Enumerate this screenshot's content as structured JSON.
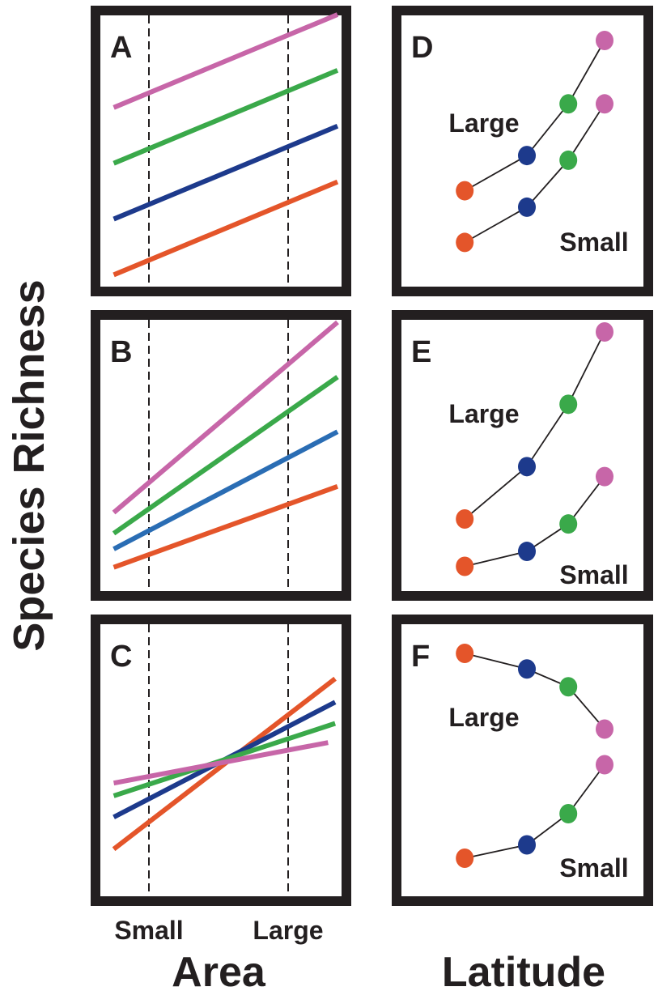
{
  "colors": {
    "pink": "#c766a8",
    "green": "#3aa94a",
    "navy": "#1d3a8c",
    "blue": "#2a6db4",
    "orange": "#e4552a",
    "ink": "#231f20"
  },
  "figure": {
    "y_axis_label": "Species Richness",
    "x_axis_label_left": "Area",
    "x_axis_label_right": "Latitude",
    "area_tick_small": "Small",
    "area_tick_large": "Large"
  },
  "chart_data": [
    {
      "panel": "A",
      "type": "line",
      "x_axis": "Area",
      "y_axis": "Species Richness",
      "xlim": [
        0,
        1
      ],
      "ylim": [
        0,
        1
      ],
      "x_reference_lines": [
        0.17,
        0.81
      ],
      "series": [
        {
          "color": "#c766a8",
          "x": [
            0.05,
            1.0
          ],
          "y": [
            0.65,
            1.0
          ]
        },
        {
          "color": "#3aa94a",
          "x": [
            0.05,
            1.0
          ],
          "y": [
            0.44,
            0.79
          ]
        },
        {
          "color": "#1d3a8c",
          "x": [
            0.05,
            1.0
          ],
          "y": [
            0.23,
            0.58
          ]
        },
        {
          "color": "#e4552a",
          "x": [
            0.05,
            1.0
          ],
          "y": [
            0.02,
            0.37
          ]
        }
      ]
    },
    {
      "panel": "B",
      "type": "line",
      "x_axis": "Area",
      "y_axis": "Species Richness",
      "xlim": [
        0,
        1
      ],
      "ylim": [
        0,
        1
      ],
      "x_reference_lines": [
        0.17,
        0.81
      ],
      "series": [
        {
          "color": "#c766a8",
          "x": [
            0.05,
            1.0
          ],
          "y": [
            0.27,
            1.0
          ]
        },
        {
          "color": "#3aa94a",
          "x": [
            0.05,
            1.0
          ],
          "y": [
            0.19,
            0.79
          ]
        },
        {
          "color": "#2a6db4",
          "x": [
            0.05,
            1.0
          ],
          "y": [
            0.13,
            0.58
          ]
        },
        {
          "color": "#e4552a",
          "x": [
            0.05,
            1.0
          ],
          "y": [
            0.06,
            0.37
          ]
        }
      ]
    },
    {
      "panel": "C",
      "type": "line",
      "x_axis": "Area",
      "y_axis": "Species Richness",
      "xlim": [
        0,
        1
      ],
      "ylim": [
        0,
        1
      ],
      "x_reference_lines": [
        0.17,
        0.81
      ],
      "series": [
        {
          "color": "#e4552a",
          "x": [
            0.05,
            0.99
          ],
          "y": [
            0.1,
            0.9
          ]
        },
        {
          "color": "#1d3a8c",
          "x": [
            0.05,
            0.99
          ],
          "y": [
            0.25,
            0.79
          ]
        },
        {
          "color": "#3aa94a",
          "x": [
            0.05,
            0.99
          ],
          "y": [
            0.35,
            0.69
          ]
        },
        {
          "color": "#c766a8",
          "x": [
            0.05,
            0.96
          ],
          "y": [
            0.41,
            0.6
          ]
        }
      ]
    },
    {
      "panel": "D",
      "type": "scatter",
      "x_axis": "Latitude",
      "y_axis": "Species Richness",
      "xlim": [
        0,
        1
      ],
      "ylim": [
        0,
        1
      ],
      "groups": [
        {
          "label": "Large",
          "label_pos": "left",
          "points": [
            {
              "x": 0.26,
              "y": 0.36,
              "color": "#e4552a"
            },
            {
              "x": 0.5,
              "y": 0.51,
              "color": "#1d3a8c"
            },
            {
              "x": 0.66,
              "y": 0.73,
              "color": "#3aa94a"
            },
            {
              "x": 0.8,
              "y": 1.0,
              "color": "#c766a8"
            }
          ]
        },
        {
          "label": "Small",
          "label_pos": "right",
          "points": [
            {
              "x": 0.26,
              "y": 0.14,
              "color": "#e4552a"
            },
            {
              "x": 0.5,
              "y": 0.29,
              "color": "#1d3a8c"
            },
            {
              "x": 0.66,
              "y": 0.49,
              "color": "#3aa94a"
            },
            {
              "x": 0.8,
              "y": 0.73,
              "color": "#c766a8"
            }
          ]
        }
      ]
    },
    {
      "panel": "E",
      "type": "scatter",
      "x_axis": "Latitude",
      "y_axis": "Species Richness",
      "xlim": [
        0,
        1
      ],
      "ylim": [
        0,
        1
      ],
      "groups": [
        {
          "label": "Large",
          "label_pos": "left",
          "points": [
            {
              "x": 0.26,
              "y": 0.25,
              "color": "#e4552a"
            },
            {
              "x": 0.5,
              "y": 0.46,
              "color": "#1d3a8c"
            },
            {
              "x": 0.66,
              "y": 0.71,
              "color": "#3aa94a"
            },
            {
              "x": 0.8,
              "y": 1.0,
              "color": "#c766a8"
            }
          ]
        },
        {
          "label": "Small",
          "label_pos": "right",
          "points": [
            {
              "x": 0.26,
              "y": 0.06,
              "color": "#e4552a"
            },
            {
              "x": 0.5,
              "y": 0.12,
              "color": "#1d3a8c"
            },
            {
              "x": 0.66,
              "y": 0.23,
              "color": "#3aa94a"
            },
            {
              "x": 0.8,
              "y": 0.42,
              "color": "#c766a8"
            }
          ]
        }
      ]
    },
    {
      "panel": "F",
      "type": "scatter",
      "x_axis": "Latitude",
      "y_axis": "Species Richness",
      "xlim": [
        0,
        1
      ],
      "ylim": [
        0,
        1
      ],
      "groups": [
        {
          "label": "Large",
          "label_pos": "left",
          "points": [
            {
              "x": 0.26,
              "y": 1.0,
              "color": "#e4552a"
            },
            {
              "x": 0.5,
              "y": 0.93,
              "color": "#1d3a8c"
            },
            {
              "x": 0.66,
              "y": 0.85,
              "color": "#3aa94a"
            },
            {
              "x": 0.8,
              "y": 0.66,
              "color": "#c766a8"
            }
          ]
        },
        {
          "label": "Small",
          "label_pos": "right",
          "points": [
            {
              "x": 0.26,
              "y": 0.08,
              "color": "#e4552a"
            },
            {
              "x": 0.5,
              "y": 0.14,
              "color": "#1d3a8c"
            },
            {
              "x": 0.66,
              "y": 0.28,
              "color": "#3aa94a"
            },
            {
              "x": 0.8,
              "y": 0.5,
              "color": "#c766a8"
            }
          ]
        }
      ]
    }
  ]
}
